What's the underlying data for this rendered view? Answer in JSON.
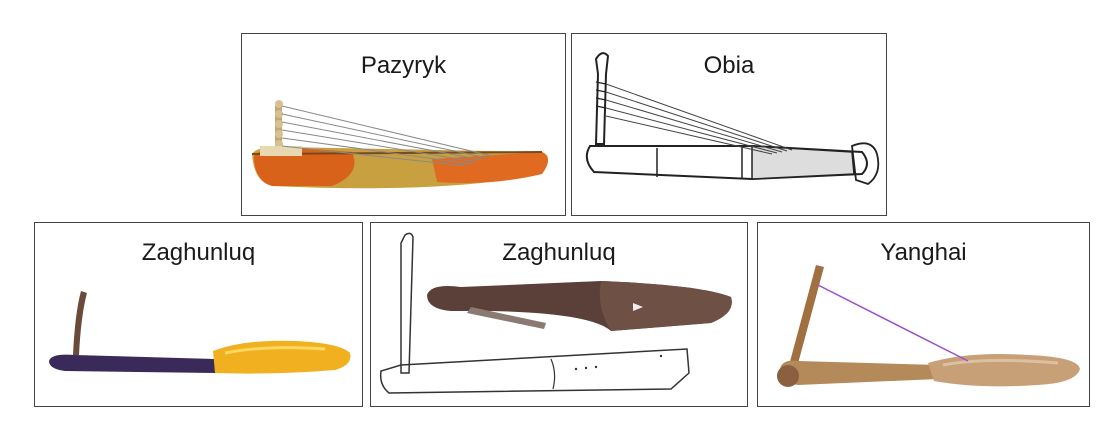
{
  "panels": [
    {
      "label": "Pazyryk"
    },
    {
      "label": "Obia"
    },
    {
      "label": "Zaghunluq"
    },
    {
      "label": "Zaghunluq"
    },
    {
      "label": "Yanghai"
    }
  ],
  "colors": {
    "border": "#444444",
    "pazyryk_body": "#d9621a",
    "pazyryk_neck": "#c8a040",
    "zaghunluq_body": "#f0b020",
    "zaghunluq_neck": "#3a2a5a",
    "wood_dark": "#5a4038",
    "yanghai_wood": "#b48a5a",
    "yanghai_string": "#9a4fd0"
  }
}
